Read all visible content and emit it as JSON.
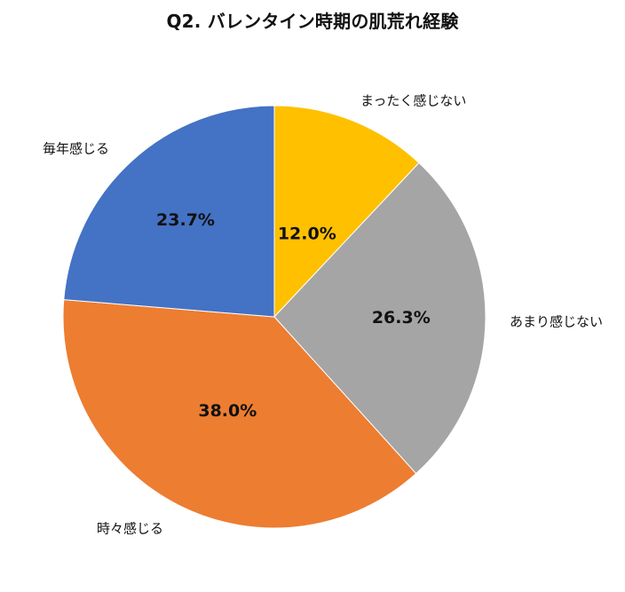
{
  "chart_data": {
    "type": "pie",
    "title": "Q2. バレンタイン時期の肌荒れ経験",
    "slices": [
      {
        "label": "まったく感じない",
        "value": 12.0,
        "value_label": "12.0%",
        "color": "#FFC000"
      },
      {
        "label": "あまり感じない",
        "value": 26.3,
        "value_label": "26.3%",
        "color": "#A5A5A5"
      },
      {
        "label": "時々感じる",
        "value": 38.0,
        "value_label": "38.0%",
        "color": "#ED7D31"
      },
      {
        "label": "毎年感じる",
        "value": 23.7,
        "value_label": "23.7%",
        "color": "#4472C4"
      }
    ],
    "start_angle": "12 o'clock",
    "direction": "clockwise"
  }
}
